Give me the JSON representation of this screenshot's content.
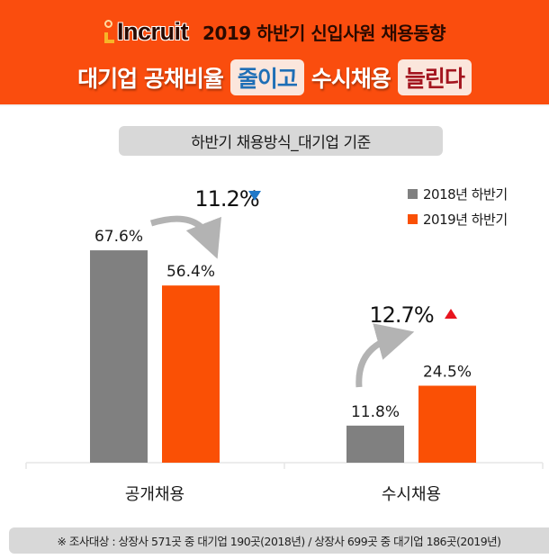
{
  "header": {
    "logo_text": "Incruit",
    "subtitle": "2019 하반기 신입사원 채용동향",
    "headline_part1": "대기업 공채비율",
    "headline_badge1": "줄이고",
    "headline_part2": "수시채용",
    "headline_badge2": "늘린다"
  },
  "section_title": "하반기 채용방식_대기업 기준",
  "footnote": "※ 조사대상 : 상장사 571곳 중 대기업 190곳(2018년) / 상장사 699곳 중 대기업 186곳(2019년)",
  "colors": {
    "header_bg": "#fa4d0e",
    "series_2018": "#808080",
    "series_2019": "#fa5005",
    "down_arrow": "#1f78c8",
    "up_arrow": "#e8141e"
  },
  "chart_data": {
    "type": "bar",
    "title": "하반기 채용방식_대기업 기준",
    "xlabel": "",
    "ylabel": "",
    "ylim": [
      0,
      70
    ],
    "grid": false,
    "legend_position": "top-right",
    "categories": [
      "공개채용",
      "수시채용"
    ],
    "series": [
      {
        "name": "2018년 하반기",
        "values": [
          67.6,
          11.8
        ],
        "labels": [
          "67.6%",
          "11.8%"
        ]
      },
      {
        "name": "2019년 하반기",
        "values": [
          56.4,
          24.5
        ],
        "labels": [
          "56.4%",
          "24.5%"
        ]
      }
    ],
    "annotations": [
      {
        "category": "공개채용",
        "text": "11.2%",
        "direction": "down"
      },
      {
        "category": "수시채용",
        "text": "12.7%",
        "direction": "up"
      }
    ]
  }
}
